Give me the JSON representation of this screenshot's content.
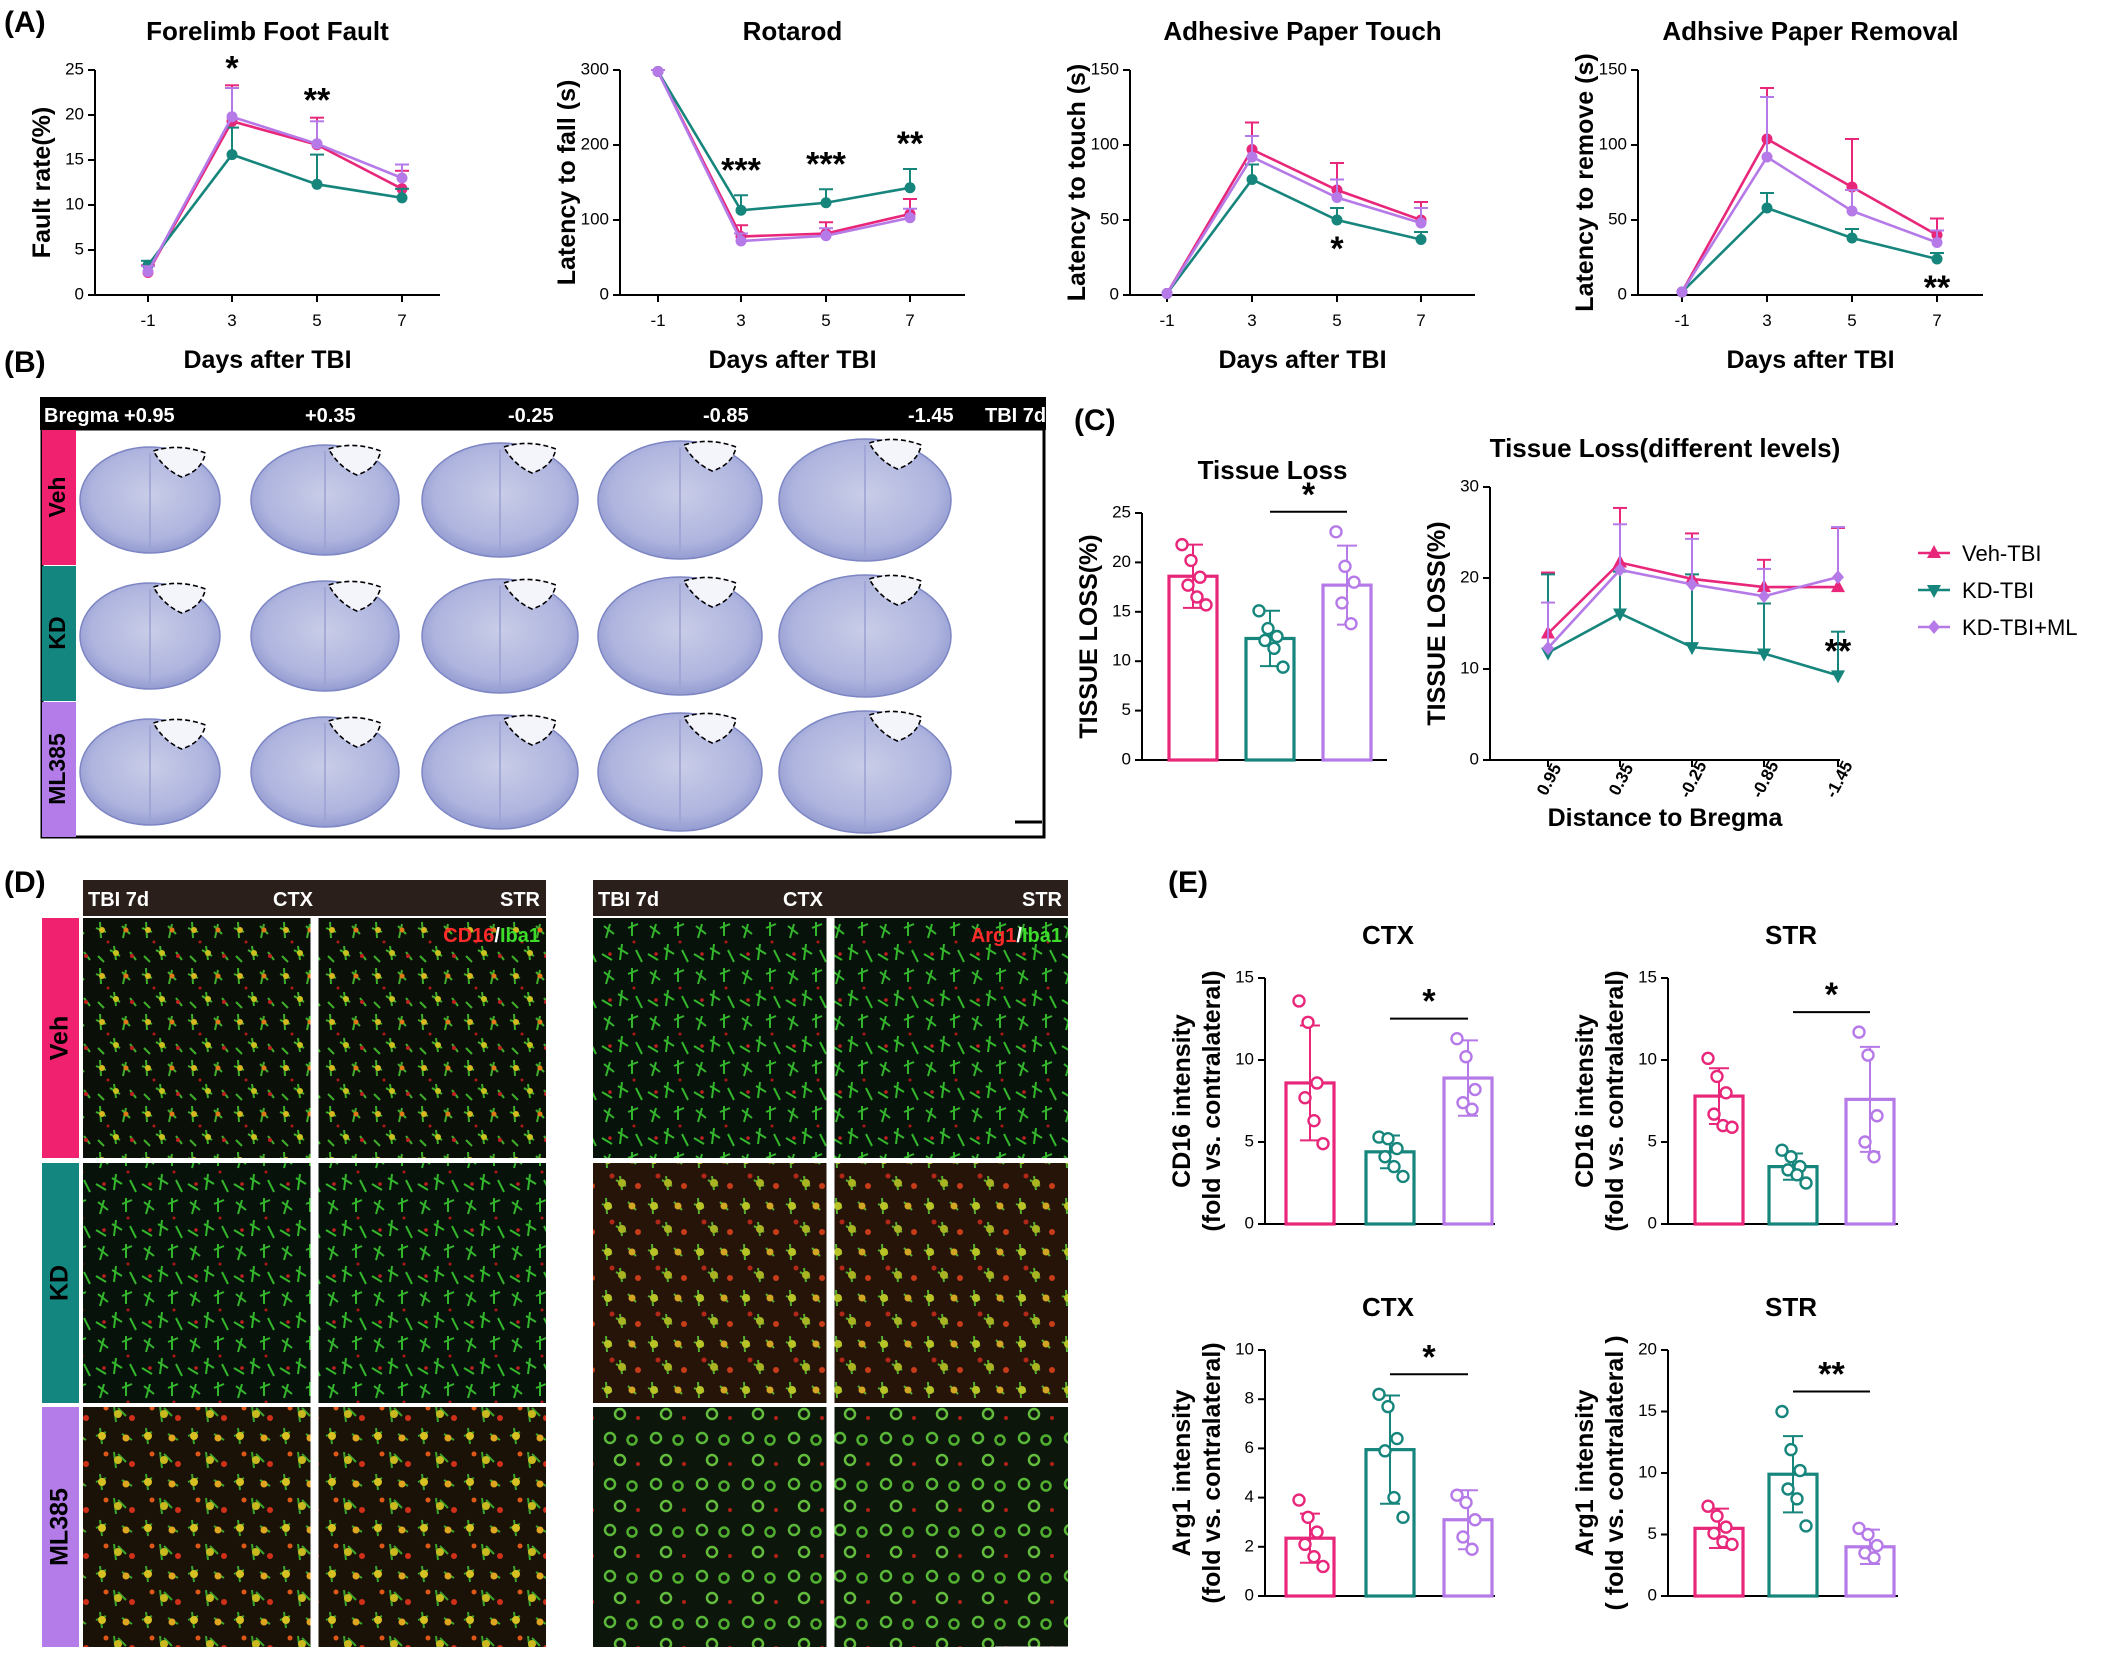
{
  "colors": {
    "veh": "#e8267a",
    "kd": "#16857c",
    "ml": "#b57ae8",
    "veh_band": "#f0216e",
    "kd_band": "#138680",
    "ml_band": "#b37ce8"
  },
  "panel_labels": [
    "(A)",
    "(B)",
    "(C)",
    "(D)",
    "(E)"
  ],
  "legend": {
    "items": [
      "Veh-TBI",
      "KD-TBI",
      "KD-TBI+ML"
    ]
  },
  "panel_b": {
    "header": [
      "Bregma +0.95",
      "+0.35",
      "-0.25",
      "-0.85",
      "-1.45",
      "TBI 7d"
    ],
    "rows": [
      "Veh",
      "KD",
      "ML385"
    ]
  },
  "panel_d": {
    "left": {
      "header": [
        "TBI 7d",
        "CTX",
        "STR"
      ],
      "stain_a": "CD16",
      "sep": "/",
      "stain_b": "Iba1"
    },
    "right": {
      "header": [
        "TBI 7d",
        "CTX",
        "STR"
      ],
      "stain_a": "Arg1",
      "sep": "/",
      "stain_b": "Iba1"
    },
    "rows": [
      "Veh",
      "KD",
      "ML385"
    ]
  },
  "chart_data": [
    {
      "id": "ffault",
      "type": "line",
      "title": "Forelimb Foot Fault",
      "xlabel": "Days after TBI",
      "ylabel": "Fault rate(%)",
      "x": [
        "-1",
        "3",
        "5",
        "7"
      ],
      "ylim": [
        0,
        25
      ],
      "yticks": [
        "0",
        "5",
        "10",
        "15",
        "20",
        "25"
      ],
      "series": [
        {
          "name": "Veh-TBI",
          "values": [
            2.5,
            19.3,
            16.7,
            11.8
          ],
          "err": [
            0.8,
            4.0,
            3.0,
            2.0
          ]
        },
        {
          "name": "KD-TBI",
          "values": [
            3.3,
            15.6,
            12.3,
            10.8
          ],
          "err": [
            0.5,
            3.0,
            3.3,
            1.0
          ]
        },
        {
          "name": "KD-TBI+ML",
          "values": [
            2.6,
            19.8,
            16.8,
            13.0
          ],
          "err": [
            0.6,
            3.2,
            2.5,
            1.5
          ]
        }
      ],
      "annotations": [
        {
          "x": "3",
          "text": "*"
        },
        {
          "x": "5",
          "text": "**"
        }
      ]
    },
    {
      "id": "rotarod",
      "type": "line",
      "title": "Rotarod",
      "xlabel": "Days after TBI",
      "ylabel": "Latency to fall (s)",
      "x": [
        "-1",
        "3",
        "5",
        "7"
      ],
      "ylim": [
        0,
        300
      ],
      "yticks": [
        "0",
        "100",
        "200",
        "300"
      ],
      "series": [
        {
          "name": "Veh-TBI",
          "values": [
            298,
            78,
            82,
            108
          ],
          "err": [
            2,
            15,
            15,
            20
          ]
        },
        {
          "name": "KD-TBI",
          "values": [
            298,
            113,
            123,
            143
          ],
          "err": [
            2,
            20,
            18,
            25
          ]
        },
        {
          "name": "KD-TBI+ML",
          "values": [
            298,
            72,
            79,
            103
          ],
          "err": [
            2,
            10,
            10,
            12
          ]
        }
      ],
      "annotations": [
        {
          "x": "3",
          "text": "***"
        },
        {
          "x": "5",
          "text": "***"
        },
        {
          "x": "7",
          "text": "**"
        }
      ]
    },
    {
      "id": "touch",
      "type": "line",
      "title": "Adhesive Paper Touch",
      "xlabel": "Days after TBI",
      "ylabel": "Latency to touch (s)",
      "x": [
        "-1",
        "3",
        "5",
        "7"
      ],
      "ylim": [
        0,
        150
      ],
      "yticks": [
        "0",
        "50",
        "100",
        "150"
      ],
      "series": [
        {
          "name": "Veh-TBI",
          "values": [
            1,
            97,
            70,
            50
          ],
          "err": [
            0,
            18,
            18,
            12
          ]
        },
        {
          "name": "KD-TBI",
          "values": [
            1,
            77,
            50,
            37
          ],
          "err": [
            0,
            10,
            8,
            5
          ]
        },
        {
          "name": "KD-TBI+ML",
          "values": [
            1,
            92,
            65,
            48
          ],
          "err": [
            0,
            14,
            12,
            10
          ]
        }
      ],
      "annotations": [
        {
          "x": "5",
          "text": "*"
        }
      ]
    },
    {
      "id": "removal",
      "type": "line",
      "title": "Adhsive Paper Removal",
      "xlabel": "Days after TBI",
      "ylabel": "Latency to remove (s)",
      "x": [
        "-1",
        "3",
        "5",
        "7"
      ],
      "ylim": [
        0,
        150
      ],
      "yticks": [
        "0",
        "50",
        "100",
        "150"
      ],
      "series": [
        {
          "name": "Veh-TBI",
          "values": [
            2,
            104,
            72,
            40
          ],
          "err": [
            0,
            34,
            32,
            11
          ]
        },
        {
          "name": "KD-TBI",
          "values": [
            2,
            58,
            38,
            24
          ],
          "err": [
            0,
            10,
            6,
            4
          ]
        },
        {
          "name": "KD-TBI+ML",
          "values": [
            2,
            92,
            56,
            35
          ],
          "err": [
            0,
            40,
            14,
            8
          ]
        }
      ],
      "annotations": [
        {
          "x": "7",
          "text": "**"
        }
      ]
    },
    {
      "id": "tloss",
      "type": "bar",
      "title": "Tissue Loss",
      "ylabel": "TISSUE LOSS(%)",
      "categories": [
        "Veh-TBI",
        "KD-TBI",
        "KD-TBI+ML"
      ],
      "ylim": [
        0,
        25
      ],
      "yticks": [
        "0",
        "5",
        "10",
        "15",
        "20",
        "25"
      ],
      "values": [
        18.6,
        12.3,
        17.7
      ],
      "err": [
        3.2,
        2.8,
        4.0
      ],
      "points": [
        [
          21.8,
          20.2,
          18.5,
          17.7,
          16.5,
          15.7
        ],
        [
          15.1,
          13.3,
          12.5,
          12.1,
          11.3,
          9.4
        ],
        [
          23.1,
          19.6,
          18.0,
          15.9,
          13.8
        ]
      ],
      "bracket": {
        "from": 1,
        "to": 2,
        "text": "*"
      }
    },
    {
      "id": "tlevels",
      "type": "line",
      "title": "Tissue Loss(different levels)",
      "xlabel": "Distance to Bregma",
      "ylabel": "TISSUE LOSS(%)",
      "x": [
        "0.95",
        "0.35",
        "-0.25",
        "-0.85",
        "-1.45"
      ],
      "ylim": [
        0,
        30
      ],
      "yticks": [
        "0",
        "10",
        "20",
        "30"
      ],
      "series": [
        {
          "name": "Veh-TBI",
          "values": [
            13.9,
            21.7,
            19.9,
            19.0,
            19.0
          ],
          "err": [
            6.7,
            6.0,
            5.0,
            3.0,
            6.5
          ]
        },
        {
          "name": "KD-TBI",
          "values": [
            11.8,
            16.1,
            12.4,
            11.7,
            9.3
          ],
          "err": [
            8.6,
            4.6,
            8.0,
            5.5,
            4.8
          ]
        },
        {
          "name": "KD-TBI+ML",
          "values": [
            12.3,
            20.9,
            19.3,
            18.0,
            20.1
          ],
          "err": [
            5.0,
            5.0,
            5.0,
            3.0,
            5.5
          ]
        }
      ],
      "annotations": [
        {
          "x": "-1.45",
          "text": "**"
        }
      ]
    },
    {
      "id": "cd16ctx",
      "type": "bar",
      "title": "CTX",
      "ylabel": [
        "CD16 intensity",
        "(fold vs. contralateral)"
      ],
      "categories": [
        "Veh-TBI",
        "KD-TBI",
        "KD-TBI+ML"
      ],
      "ylim": [
        0,
        15
      ],
      "yticks": [
        "0",
        "5",
        "10",
        "15"
      ],
      "values": [
        8.6,
        4.4,
        8.9
      ],
      "err": [
        3.5,
        1.0,
        2.3
      ],
      "points": [
        [
          13.6,
          12.3,
          8.6,
          7.7,
          6.3,
          4.9
        ],
        [
          5.3,
          5.2,
          4.6,
          4.1,
          3.5,
          2.9
        ],
        [
          11.3,
          10.2,
          8.2,
          7.4,
          7.0
        ]
      ],
      "bracket": {
        "from": 1,
        "to": 2,
        "text": "*"
      }
    },
    {
      "id": "cd16str",
      "type": "bar",
      "title": "STR",
      "ylabel": [
        "CD16 intensity",
        "(fold vs. contralateral)"
      ],
      "categories": [
        "Veh-TBI",
        "KD-TBI",
        "KD-TBI+ML"
      ],
      "ylim": [
        0,
        15
      ],
      "yticks": [
        "0",
        "5",
        "10",
        "15"
      ],
      "values": [
        7.8,
        3.5,
        7.6
      ],
      "err": [
        1.7,
        0.8,
        3.2
      ],
      "points": [
        [
          10.1,
          9.0,
          8.0,
          6.7,
          6.0,
          5.9
        ],
        [
          4.5,
          4.1,
          3.5,
          3.3,
          3.0,
          2.5
        ],
        [
          11.7,
          10.3,
          6.6,
          5.0,
          4.1
        ]
      ],
      "bracket": {
        "from": 1,
        "to": 2,
        "text": "*"
      }
    },
    {
      "id": "arg1ctx",
      "type": "bar",
      "title": "CTX",
      "ylabel": [
        "Arg1 intensity",
        "(fold vs. contralateral)"
      ],
      "categories": [
        "Veh-TBI",
        "KD-TBI",
        "KD-TBI+ML"
      ],
      "ylim": [
        0,
        10
      ],
      "yticks": [
        "0",
        "2",
        "4",
        "6",
        "8",
        "10"
      ],
      "values": [
        2.35,
        5.95,
        3.1
      ],
      "err": [
        1.0,
        2.2,
        1.2
      ],
      "points": [
        [
          3.9,
          3.2,
          2.6,
          2.1,
          1.6,
          1.2
        ],
        [
          8.2,
          7.7,
          6.4,
          5.9,
          4.0,
          3.2
        ],
        [
          4.1,
          3.8,
          3.1,
          2.4,
          1.9
        ]
      ],
      "bracket": {
        "from": 1,
        "to": 2,
        "text": "*"
      }
    },
    {
      "id": "arg1str",
      "type": "bar",
      "title": "STR",
      "ylabel": [
        "Arg1 intensity",
        "( fold vs. contralateral )"
      ],
      "categories": [
        "Veh-TBI",
        "KD-TBI",
        "KD-TBI+ML"
      ],
      "ylim": [
        0,
        20
      ],
      "yticks": [
        "0",
        "5",
        "10",
        "15",
        "20"
      ],
      "values": [
        5.5,
        9.9,
        4.0
      ],
      "err": [
        1.6,
        3.1,
        1.4
      ],
      "points": [
        [
          7.3,
          6.5,
          5.6,
          5.1,
          4.4,
          4.2
        ],
        [
          15.0,
          11.9,
          10.2,
          8.7,
          7.9,
          5.7
        ],
        [
          5.5,
          5.0,
          4.1,
          3.5,
          3.1
        ]
      ],
      "bracket": {
        "from": 1,
        "to": 2,
        "text": "**"
      }
    }
  ]
}
